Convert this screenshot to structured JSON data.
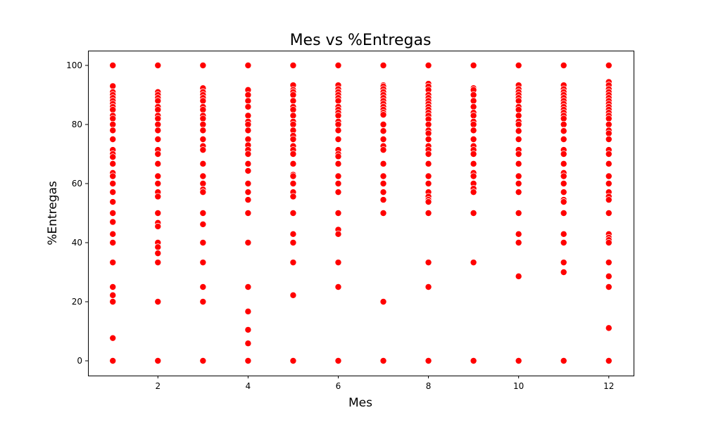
{
  "chart_data": {
    "type": "scatter",
    "title": "Mes vs %Entregas",
    "xlabel": "Mes",
    "ylabel": "%Entregas",
    "xlim": [
      0.45,
      12.55
    ],
    "ylim": [
      -5,
      105
    ],
    "xticks": [
      2,
      4,
      6,
      8,
      10,
      12
    ],
    "yticks": [
      0,
      20,
      40,
      60,
      80,
      100
    ],
    "grid": false,
    "marker_color": "#ff0000",
    "series": [
      {
        "points": [
          {
            "x": 1,
            "ys": [
              100,
              93,
              91,
              90,
              89,
              88,
              87,
              86,
              85,
              83,
              82,
              80,
              78,
              75,
              71.4,
              70,
              69,
              66.7,
              63.6,
              62.5,
              60,
              57.1,
              53.8,
              50,
              47,
              42.9,
              40,
              33.3,
              25,
              22.2,
              20,
              7.7,
              0
            ]
          },
          {
            "x": 2,
            "ys": [
              100,
              91,
              90,
              89,
              88,
              86,
              85,
              83,
              82,
              80,
              78,
              75,
              71.4,
              70,
              66.7,
              62.5,
              60,
              57.1,
              55.6,
              50,
              46.7,
              45.5,
              40,
              38.5,
              36.4,
              33.3,
              20,
              0
            ]
          },
          {
            "x": 3,
            "ys": [
              100,
              92.3,
              91,
              90,
              89,
              88,
              86,
              85,
              83,
              82,
              80,
              78,
              75,
              72.7,
              71.4,
              66.7,
              62.5,
              60,
              58,
              57.1,
              50,
              46.2,
              40,
              33.3,
              25,
              20,
              0
            ]
          },
          {
            "x": 4,
            "ys": [
              100,
              91.7,
              90,
              88,
              86,
              83,
              81,
              80,
              78,
              75,
              73,
              71.4,
              70,
              66.7,
              64.3,
              60,
              57.1,
              54.5,
              50,
              40,
              25,
              16.7,
              10.5,
              5.9,
              0
            ]
          },
          {
            "x": 5,
            "ys": [
              100,
              93.3,
              91.7,
              91,
              90,
              88,
              86,
              85,
              83,
              81,
              80,
              78,
              76.2,
              75,
              72.7,
              71.4,
              70,
              66.7,
              63,
              62.5,
              60,
              57.1,
              55.6,
              50,
              42.9,
              40,
              33.3,
              22.2,
              0
            ]
          },
          {
            "x": 6,
            "ys": [
              100,
              93.3,
              92,
              91,
              90,
              89,
              88,
              86,
              85,
              84,
              83,
              81,
              80,
              78,
              75,
              71.4,
              70,
              69.2,
              66.7,
              62.5,
              60,
              57.1,
              50,
              44.4,
              42.9,
              33.3,
              25,
              0
            ]
          },
          {
            "x": 7,
            "ys": [
              100,
              93.3,
              92.9,
              92,
              91,
              90,
              89,
              88,
              87,
              86,
              85,
              84,
              83.3,
              80,
              77.8,
              75,
              72.7,
              71.4,
              66.7,
              62.5,
              60,
              57.1,
              54.5,
              50,
              20,
              0
            ]
          },
          {
            "x": 8,
            "ys": [
              100,
              93.8,
              92.9,
              91.7,
              90,
              89,
              88,
              87,
              86,
              85,
              84,
              83,
              81.8,
              80,
              78,
              77,
              75,
              72.7,
              71.4,
              70,
              66.7,
              62.5,
              60,
              57.1,
              55.6,
              54.5,
              53.8,
              50,
              33.3,
              25,
              0
            ]
          },
          {
            "x": 9,
            "ys": [
              100,
              92.3,
              91.7,
              90,
              88,
              86,
              84,
              83,
              81,
              80,
              78,
              75,
              72.7,
              71.4,
              70,
              66.7,
              63.6,
              62.5,
              60,
              58.3,
              57.1,
              50,
              33.3,
              0
            ]
          },
          {
            "x": 10,
            "ys": [
              100,
              93.3,
              92,
              91,
              90,
              89,
              88,
              86,
              85,
              83,
              81,
              80,
              78,
              77.8,
              75,
              71.4,
              70,
              66.7,
              62.5,
              60,
              57.1,
              50,
              42.9,
              40,
              28.6,
              0
            ]
          },
          {
            "x": 11,
            "ys": [
              100,
              93.3,
              92,
              91,
              90,
              89,
              88,
              87,
              86,
              85,
              84,
              83,
              82,
              80,
              78,
              77.8,
              75,
              71.4,
              70,
              66.7,
              63.6,
              62.5,
              60,
              57.1,
              54.5,
              53.8,
              50,
              42.9,
              40,
              33.3,
              30,
              0
            ]
          },
          {
            "x": 12,
            "ys": [
              100,
              94.4,
              93.3,
              92,
              91,
              90,
              89,
              88,
              87,
              86,
              85,
              84,
              83,
              82,
              80,
              78,
              77,
              75,
              71.4,
              70,
              66.7,
              62.5,
              60,
              57.1,
              55.6,
              54.5,
              50,
              42.9,
              41.7,
              40.9,
              40,
              33.3,
              28.6,
              25,
              11.1,
              0
            ]
          }
        ]
      }
    ]
  }
}
